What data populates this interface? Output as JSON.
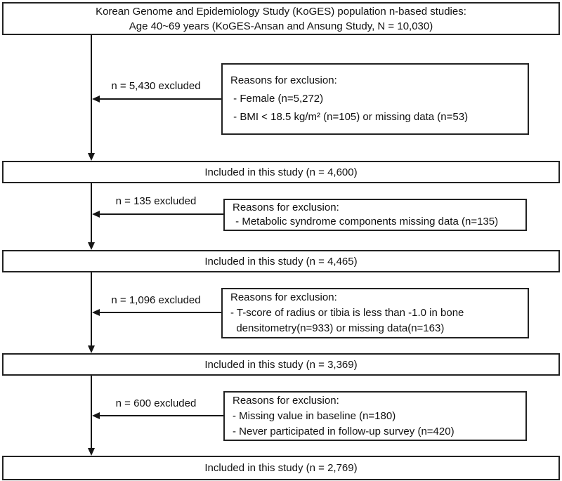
{
  "diagram": {
    "colors": {
      "background": "#ffffff",
      "border": "#222222",
      "line": "#161616",
      "text": "#111111"
    },
    "title": {
      "line1": "Korean Genome and Epidemiology Study (KoGES) population n-based studies:",
      "line2": "Age 40~69 years (KoGES-Ansan and Ansung Study, N = 10,030)"
    },
    "exclusions": [
      {
        "arrow_label": "n = 5,430 excluded",
        "header": "Reasons for exclusion:",
        "items": [
          " - Female (n=5,272)",
          " - BMI < 18.5 kg/m² (n=105) or missing data (n=53)"
        ]
      },
      {
        "arrow_label": "n = 135 excluded",
        "header": "Reasons for exclusion:",
        "items": [
          " - Metabolic syndrome components missing data (n=135)"
        ]
      },
      {
        "arrow_label": "n = 1,096 excluded",
        "header": "Reasons for exclusion:",
        "items": [
          "- T-score of radius or tibia is less than -1.0 in bone",
          "  densitometry(n=933) or missing data(n=163)"
        ]
      },
      {
        "arrow_label": "n = 600 excluded",
        "header": "Reasons for exclusion:",
        "items": [
          "- Missing value in baseline (n=180)",
          "- Never participated in follow-up survey (n=420)"
        ]
      }
    ],
    "included_boxes": [
      "Included in this study (n = 4,600)",
      "Included in this study (n = 4,465)",
      "Included in this study (n = 3,369)",
      "Included in this study (n = 2,769)"
    ]
  }
}
